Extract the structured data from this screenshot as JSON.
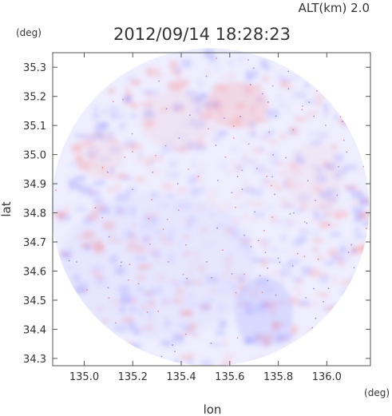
{
  "header": {
    "altitude_label": "ALT(km) 2.0",
    "timestamp": "2012/09/14 18:28:23",
    "y_unit": "(deg)",
    "x_unit": "(deg)"
  },
  "chart_data": {
    "type": "heatmap",
    "title": "2012/09/14 18:28:23",
    "xlabel": "lon",
    "ylabel": "lat",
    "xlim": [
      134.87,
      136.18
    ],
    "ylim": [
      34.275,
      35.35
    ],
    "x_ticks": [
      135.0,
      135.2,
      135.4,
      135.6,
      135.8,
      136.0
    ],
    "x_tick_labels": [
      "135.0",
      "135.2",
      "135.4",
      "135.6",
      "135.8",
      "136.0"
    ],
    "y_ticks": [
      34.3,
      34.4,
      34.5,
      34.6,
      34.7,
      34.8,
      34.9,
      35.0,
      35.1,
      35.2,
      35.3
    ],
    "y_tick_labels": [
      "34.3",
      "34.4",
      "34.5",
      "34.6",
      "34.7",
      "34.8",
      "34.9",
      "35.0",
      "35.1",
      "35.2",
      "35.3"
    ],
    "grid": false,
    "coverage": {
      "center_lon": 135.52,
      "center_lat": 34.82,
      "radius_deg": 0.655
    },
    "colors": {
      "positive": "#ff8080",
      "negative": "#8080ff",
      "base": "#eeeeff",
      "frame": "#555555"
    },
    "regions": [
      {
        "lon": 135.63,
        "lat": 35.17,
        "rlon": 0.13,
        "rlat": 0.08,
        "value": 0.6
      },
      {
        "lon": 135.74,
        "lat": 34.46,
        "rlon": 0.12,
        "rlat": 0.12,
        "value": -0.55
      },
      {
        "lon": 135.3,
        "lat": 34.62,
        "rlon": 0.4,
        "rlat": 0.25,
        "value": -0.2
      },
      {
        "lon": 135.06,
        "lat": 35.0,
        "rlon": 0.1,
        "rlat": 0.08,
        "value": 0.3
      },
      {
        "lon": 135.38,
        "lat": 35.12,
        "rlon": 0.15,
        "rlat": 0.1,
        "value": 0.25
      },
      {
        "lon": 135.95,
        "lat": 34.92,
        "rlon": 0.12,
        "rlat": 0.12,
        "value": 0.2
      }
    ]
  }
}
